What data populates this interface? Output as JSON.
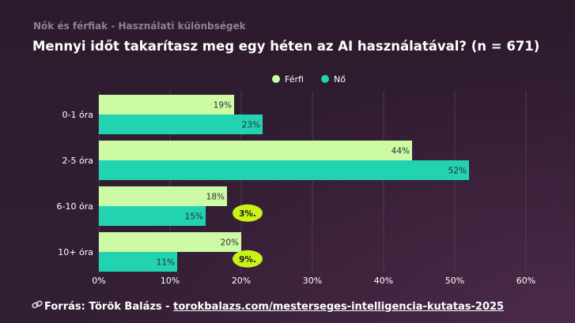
{
  "header": {
    "subtitle": "Nők és férfiak - Használati különbségek"
  },
  "chart_data": {
    "type": "bar",
    "orientation": "horizontal",
    "title": "Mennyi időt takarítasz meg egy héten az AI használatával? (n = 671)",
    "categories": [
      "0-1 óra",
      "2-5 óra",
      "6-10 óra",
      "10+ óra"
    ],
    "series": [
      {
        "name": "Férfi",
        "values": [
          19,
          44,
          18,
          20
        ],
        "labels": [
          "19%",
          "44%",
          "18%",
          "20%"
        ],
        "color": "#cdfaa5"
      },
      {
        "name": "Nő",
        "values": [
          23,
          52,
          15,
          11
        ],
        "labels": [
          "23%",
          "52%",
          "15%",
          "11%"
        ],
        "color": "#22d3b2"
      }
    ],
    "difference_badges": [
      {
        "category": "6-10 óra",
        "label": "3%."
      },
      {
        "category": "10+ óra",
        "label": "9%."
      }
    ],
    "badge_color": "#c8f21a",
    "x_ticks": [
      0,
      10,
      20,
      30,
      40,
      50,
      60
    ],
    "x_tick_labels": [
      "0%",
      "10%",
      "20%",
      "30%",
      "40%",
      "50%",
      "60%"
    ],
    "xlim": [
      0,
      60
    ],
    "grid": true,
    "legend_position": "top-center"
  },
  "footer": {
    "icon": "link-icon",
    "prefix": "Forrás: Török Balázs - ",
    "link": "torokbalazs.com/mesterseges-intelligencia-kutatas-2025"
  }
}
